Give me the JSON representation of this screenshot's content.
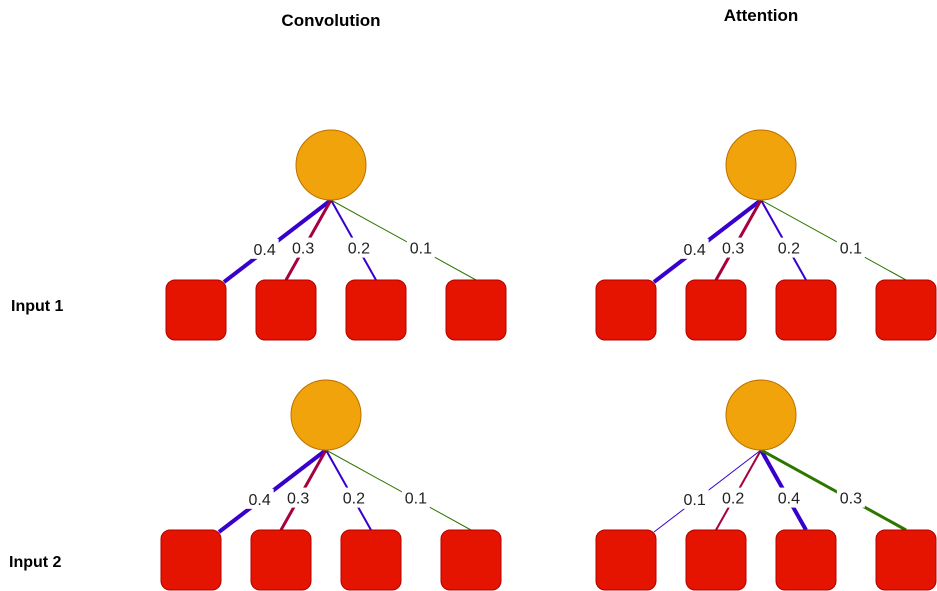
{
  "titles": {
    "convolution": "Convolution",
    "attention": "Attention"
  },
  "row_labels": {
    "input1": "Input 1",
    "input2": "Input 2"
  },
  "colors": {
    "node": "#F0A30A",
    "node_stroke": "#BD7000",
    "input": "#E51400",
    "input_stroke": "#B20000",
    "blue": "#3700CC",
    "crimson": "#A50040",
    "green": "#2D7600"
  },
  "diagrams": [
    {
      "name": "conv-input1",
      "edges": [
        {
          "weight": "0.4",
          "color": "blue"
        },
        {
          "weight": "0.3",
          "color": "crimson"
        },
        {
          "weight": "0.2",
          "color": "blue"
        },
        {
          "weight": "0.1",
          "color": "green"
        }
      ]
    },
    {
      "name": "attn-input1",
      "edges": [
        {
          "weight": "0.4",
          "color": "blue"
        },
        {
          "weight": "0.3",
          "color": "crimson"
        },
        {
          "weight": "0.2",
          "color": "blue"
        },
        {
          "weight": "0.1",
          "color": "green"
        }
      ]
    },
    {
      "name": "conv-input2",
      "edges": [
        {
          "weight": "0.4",
          "color": "blue"
        },
        {
          "weight": "0.3",
          "color": "crimson"
        },
        {
          "weight": "0.2",
          "color": "blue"
        },
        {
          "weight": "0.1",
          "color": "green"
        }
      ]
    },
    {
      "name": "attn-input2",
      "edges": [
        {
          "weight": "0.1",
          "color": "blue"
        },
        {
          "weight": "0.2",
          "color": "crimson"
        },
        {
          "weight": "0.4",
          "color": "blue"
        },
        {
          "weight": "0.3",
          "color": "green"
        }
      ]
    }
  ]
}
